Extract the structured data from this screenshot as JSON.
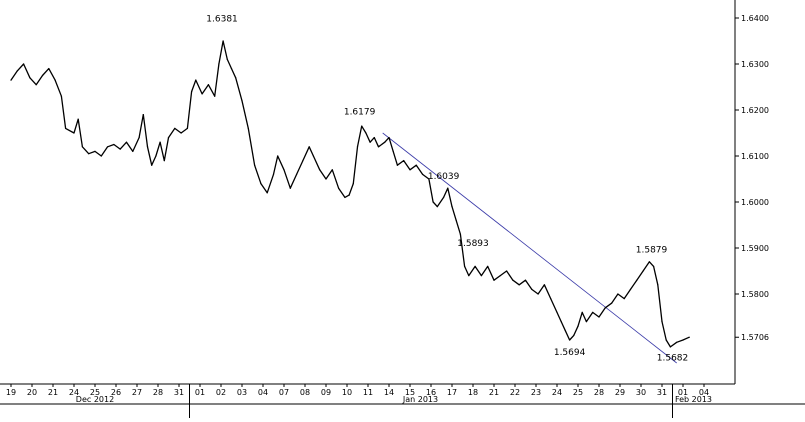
{
  "chart_data": {
    "type": "line",
    "title": "",
    "xlabel": "",
    "ylabel": "",
    "ylim": [
      1.5618,
      1.6445
    ],
    "y_ticks": [
      1.64,
      1.63,
      1.62,
      1.61,
      1.6,
      1.59,
      1.58
    ],
    "y_tick_labels": [
      "1.6400",
      "1.6300",
      "1.6200",
      "1.6100",
      "1.6000",
      "1.5900",
      "1.5800"
    ],
    "last_price_label": "1.5706",
    "x_tick_labels": [
      "19",
      "20",
      "21",
      "24",
      "25",
      "26",
      "27",
      "28",
      "31",
      "01",
      "02",
      "03",
      "04",
      "07",
      "08",
      "09",
      "10",
      "11",
      "14",
      "15",
      "16",
      "17",
      "18",
      "21",
      "22",
      "23",
      "24",
      "25",
      "28",
      "29",
      "30",
      "31",
      "01",
      "04"
    ],
    "month_labels": [
      {
        "text": "Dec 2012",
        "at_index": 4
      },
      {
        "text": "Jan 2013",
        "at_index": 19.5
      },
      {
        "text": "Feb 2013",
        "at_index": 32.5
      }
    ],
    "month_separators": [
      8.5,
      31.5
    ],
    "series": [
      {
        "values": [
          [
            0,
            1.6265
          ],
          [
            0.3,
            1.6285
          ],
          [
            0.6,
            1.63
          ],
          [
            0.9,
            1.627
          ],
          [
            1.2,
            1.6255
          ],
          [
            1.5,
            1.6275
          ],
          [
            1.8,
            1.629
          ],
          [
            2.1,
            1.6265
          ],
          [
            2.4,
            1.623
          ],
          [
            2.6,
            1.616
          ],
          [
            3.0,
            1.615
          ],
          [
            3.2,
            1.618
          ],
          [
            3.4,
            1.612
          ],
          [
            3.7,
            1.6105
          ],
          [
            4.0,
            1.611
          ],
          [
            4.3,
            1.61
          ],
          [
            4.6,
            1.612
          ],
          [
            4.9,
            1.6125
          ],
          [
            5.2,
            1.6115
          ],
          [
            5.5,
            1.613
          ],
          [
            5.8,
            1.611
          ],
          [
            6.1,
            1.614
          ],
          [
            6.3,
            1.619
          ],
          [
            6.5,
            1.612
          ],
          [
            6.7,
            1.608
          ],
          [
            6.9,
            1.61
          ],
          [
            7.1,
            1.613
          ],
          [
            7.3,
            1.609
          ],
          [
            7.5,
            1.614
          ],
          [
            7.8,
            1.616
          ],
          [
            8.1,
            1.615
          ],
          [
            8.4,
            1.616
          ],
          [
            8.6,
            1.624
          ],
          [
            8.8,
            1.6265
          ],
          [
            9.1,
            1.6235
          ],
          [
            9.4,
            1.6255
          ],
          [
            9.7,
            1.623
          ],
          [
            9.9,
            1.63
          ],
          [
            10.1,
            1.635
          ],
          [
            10.3,
            1.631
          ],
          [
            10.5,
            1.629
          ],
          [
            10.7,
            1.627
          ],
          [
            11.0,
            1.622
          ],
          [
            11.3,
            1.616
          ],
          [
            11.6,
            1.608
          ],
          [
            11.9,
            1.604
          ],
          [
            12.2,
            1.602
          ],
          [
            12.5,
            1.606
          ],
          [
            12.7,
            1.61
          ],
          [
            13.0,
            1.607
          ],
          [
            13.3,
            1.603
          ],
          [
            13.6,
            1.606
          ],
          [
            13.9,
            1.609
          ],
          [
            14.2,
            1.612
          ],
          [
            14.4,
            1.61
          ],
          [
            14.7,
            1.607
          ],
          [
            15.0,
            1.605
          ],
          [
            15.3,
            1.607
          ],
          [
            15.6,
            1.603
          ],
          [
            15.9,
            1.601
          ],
          [
            16.1,
            1.6015
          ],
          [
            16.3,
            1.604
          ],
          [
            16.5,
            1.612
          ],
          [
            16.7,
            1.6165
          ],
          [
            16.9,
            1.615
          ],
          [
            17.1,
            1.613
          ],
          [
            17.3,
            1.614
          ],
          [
            17.5,
            1.612
          ],
          [
            17.8,
            1.613
          ],
          [
            18.0,
            1.614
          ],
          [
            18.2,
            1.611
          ],
          [
            18.4,
            1.608
          ],
          [
            18.7,
            1.609
          ],
          [
            19.0,
            1.607
          ],
          [
            19.3,
            1.608
          ],
          [
            19.6,
            1.606
          ],
          [
            19.9,
            1.605
          ],
          [
            20.1,
            1.6
          ],
          [
            20.3,
            1.599
          ],
          [
            20.6,
            1.601
          ],
          [
            20.8,
            1.603
          ],
          [
            21.0,
            1.599
          ],
          [
            21.2,
            1.596
          ],
          [
            21.4,
            1.593
          ],
          [
            21.6,
            1.586
          ],
          [
            21.8,
            1.584
          ],
          [
            22.1,
            1.586
          ],
          [
            22.4,
            1.584
          ],
          [
            22.7,
            1.586
          ],
          [
            23.0,
            1.583
          ],
          [
            23.3,
            1.584
          ],
          [
            23.6,
            1.585
          ],
          [
            23.9,
            1.583
          ],
          [
            24.2,
            1.582
          ],
          [
            24.5,
            1.583
          ],
          [
            24.8,
            1.581
          ],
          [
            25.1,
            1.58
          ],
          [
            25.4,
            1.582
          ],
          [
            25.7,
            1.579
          ],
          [
            26.0,
            1.576
          ],
          [
            26.2,
            1.574
          ],
          [
            26.4,
            1.572
          ],
          [
            26.6,
            1.57
          ],
          [
            26.8,
            1.571
          ],
          [
            27.0,
            1.573
          ],
          [
            27.2,
            1.576
          ],
          [
            27.4,
            1.574
          ],
          [
            27.7,
            1.576
          ],
          [
            28.0,
            1.575
          ],
          [
            28.3,
            1.577
          ],
          [
            28.6,
            1.578
          ],
          [
            28.9,
            1.58
          ],
          [
            29.2,
            1.579
          ],
          [
            29.5,
            1.581
          ],
          [
            29.8,
            1.583
          ],
          [
            30.1,
            1.585
          ],
          [
            30.4,
            1.587
          ],
          [
            30.6,
            1.586
          ],
          [
            30.8,
            1.582
          ],
          [
            31.0,
            1.574
          ],
          [
            31.2,
            1.57
          ],
          [
            31.4,
            1.5685
          ],
          [
            31.7,
            1.5695
          ],
          [
            32.0,
            1.57
          ],
          [
            32.3,
            1.5706
          ]
        ]
      }
    ],
    "annotations": [
      {
        "text": "1.6381",
        "x": 10.05,
        "y": 1.6381
      },
      {
        "text": "1.6179",
        "x": 16.6,
        "y": 1.6179
      },
      {
        "text": "1.6039",
        "x": 20.6,
        "y": 1.6039
      },
      {
        "text": "1.5893",
        "x": 22.0,
        "y": 1.5893
      },
      {
        "text": "1.5879",
        "x": 30.5,
        "y": 1.5879
      },
      {
        "text": "1.5694",
        "x": 26.6,
        "y": 1.5694
      },
      {
        "text": "1.5682",
        "x": 31.5,
        "y": 1.5682
      }
    ],
    "trendline": [
      [
        17.7,
        1.615
      ],
      [
        31.7,
        1.565
      ]
    ],
    "grid": false
  }
}
